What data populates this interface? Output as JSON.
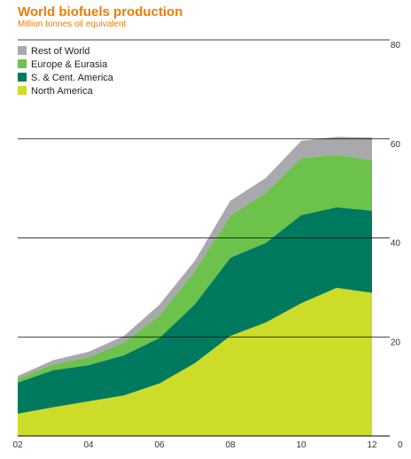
{
  "chart_data": {
    "type": "area",
    "title": "World biofuels production",
    "subtitle": "Million tonnes oil equivalent",
    "stacked": true,
    "x": [
      2002,
      2003,
      2004,
      2005,
      2006,
      2007,
      2008,
      2009,
      2010,
      2011,
      2012
    ],
    "x_tick_values": [
      2002,
      2004,
      2006,
      2008,
      2010,
      2012
    ],
    "x_tick_labels": [
      "02",
      "04",
      "06",
      "08",
      "10",
      "12"
    ],
    "y_ticks": [
      0,
      20,
      40,
      60,
      80
    ],
    "ylim": [
      0,
      80
    ],
    "y_axis_side": "right",
    "legend_position": "top-left",
    "series": [
      {
        "name": "North America",
        "color": "#cddc28",
        "values": [
          4.5,
          5.8,
          7.0,
          8.2,
          10.6,
          14.7,
          20.2,
          22.9,
          26.8,
          29.9,
          28.9
        ]
      },
      {
        "name": "S. & Cent. America",
        "color": "#007a5e",
        "values": [
          6.3,
          7.5,
          7.3,
          8.1,
          9.2,
          11.9,
          15.8,
          16.1,
          17.8,
          16.3,
          16.6
        ]
      },
      {
        "name": "Europe & Eurasia",
        "color": "#6cc24a",
        "values": [
          0.7,
          1.2,
          1.6,
          2.6,
          4.5,
          6.7,
          8.5,
          10.1,
          11.5,
          10.6,
          10.2
        ]
      },
      {
        "name": "Rest of World",
        "color": "#a8a9ad",
        "values": [
          0.6,
          0.8,
          1.1,
          1.3,
          2.2,
          2.1,
          3.0,
          3.0,
          3.5,
          3.6,
          4.6
        ]
      }
    ],
    "legend": [
      {
        "name": "Rest of World",
        "color": "#a8a9ad"
      },
      {
        "name": "Europe & Eurasia",
        "color": "#6cc24a"
      },
      {
        "name": "S. & Cent. America",
        "color": "#007a5e"
      },
      {
        "name": "North America",
        "color": "#cddc28"
      }
    ]
  }
}
